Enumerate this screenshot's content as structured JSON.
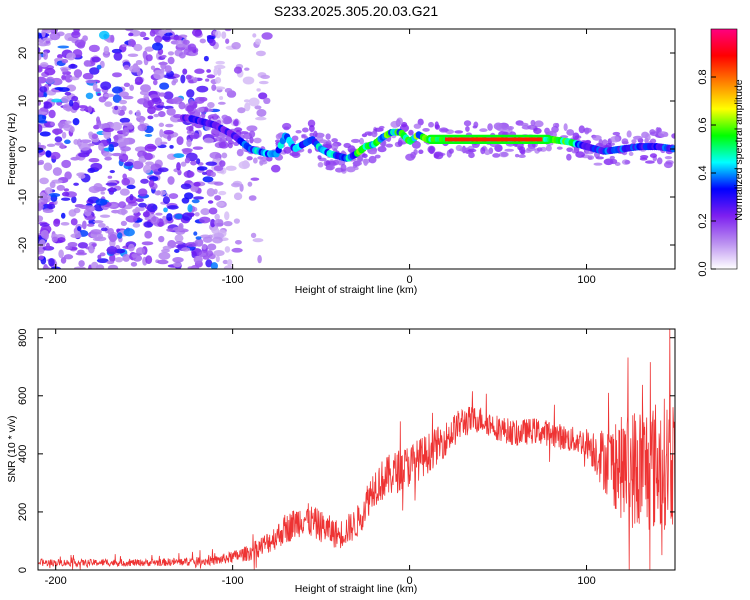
{
  "title": "S233.2025.305.20.03.G21",
  "chart_data": [
    {
      "type": "heatmap",
      "name": "spectrogram",
      "xlabel": "Height of straight line (km)",
      "ylabel": "Frequency (Hz)",
      "xlim": [
        -210,
        150
      ],
      "ylim": [
        -25,
        25
      ],
      "xticks": [
        -200,
        -100,
        0,
        100
      ],
      "yticks": [
        -20,
        -10,
        0,
        10,
        20
      ],
      "colorbar": {
        "label": "Normalized spectral amplitude",
        "range": [
          0.0,
          1.0
        ],
        "ticks": [
          0.0,
          0.2,
          0.4,
          0.6,
          0.8
        ],
        "colors": [
          "#ffffff",
          "#b98df0",
          "#7d1ff0",
          "#0000ff",
          "#00ffff",
          "#00ff00",
          "#ffff00",
          "#ff8000",
          "#ff0000",
          "#ff0080"
        ]
      },
      "ridge": {
        "x": [
          -125,
          -110,
          -100,
          -90,
          -80,
          -75,
          -70,
          -65,
          -60,
          -55,
          -50,
          -45,
          -40,
          -35,
          -30,
          -25,
          -20,
          -15,
          -10,
          -5,
          0,
          5,
          10,
          20,
          40,
          60,
          80,
          90,
          100,
          105,
          110,
          120,
          130,
          140,
          150
        ],
        "y": [
          6.5,
          5,
          3,
          0,
          -1,
          -1,
          3,
          0,
          1,
          2,
          0,
          -1,
          -1.5,
          -2,
          -1,
          0.5,
          1,
          2.5,
          3.5,
          3.5,
          1.5,
          3,
          2,
          2,
          2,
          2,
          2,
          1.5,
          0.5,
          0,
          -0.5,
          0,
          0.5,
          0.5,
          0
        ]
      },
      "ridge_peak": {
        "x": [
          -10,
          80
        ],
        "y": 2
      }
    },
    {
      "type": "line",
      "name": "snr",
      "xlabel": "Height of straight line (km)",
      "ylabel": "SNR (10 * v/v)",
      "xlim": [
        -210,
        150
      ],
      "ylim": [
        0,
        830
      ],
      "xticks": [
        -200,
        -100,
        0,
        100
      ],
      "yticks": [
        0,
        200,
        400,
        600,
        800
      ],
      "series": [
        {
          "name": "SNR",
          "color": "#ee3333",
          "x": [
            -210,
            -190,
            -170,
            -150,
            -130,
            -110,
            -100,
            -90,
            -80,
            -70,
            -60,
            -50,
            -40,
            -30,
            -20,
            -10,
            0,
            10,
            20,
            30,
            40,
            50,
            60,
            70,
            80,
            90,
            100,
            110,
            120,
            130,
            140,
            150
          ],
          "y": [
            25,
            25,
            25,
            25,
            28,
            32,
            45,
            60,
            95,
            140,
            180,
            150,
            120,
            160,
            290,
            330,
            360,
            400,
            450,
            510,
            520,
            490,
            470,
            480,
            470,
            450,
            440,
            380,
            350,
            350,
            360,
            380
          ],
          "spread": [
            12,
            12,
            12,
            12,
            14,
            16,
            20,
            28,
            40,
            50,
            60,
            55,
            50,
            55,
            70,
            75,
            75,
            70,
            60,
            55,
            45,
            45,
            45,
            45,
            45,
            45,
            50,
            110,
            180,
            230,
            230,
            230
          ]
        }
      ]
    }
  ]
}
